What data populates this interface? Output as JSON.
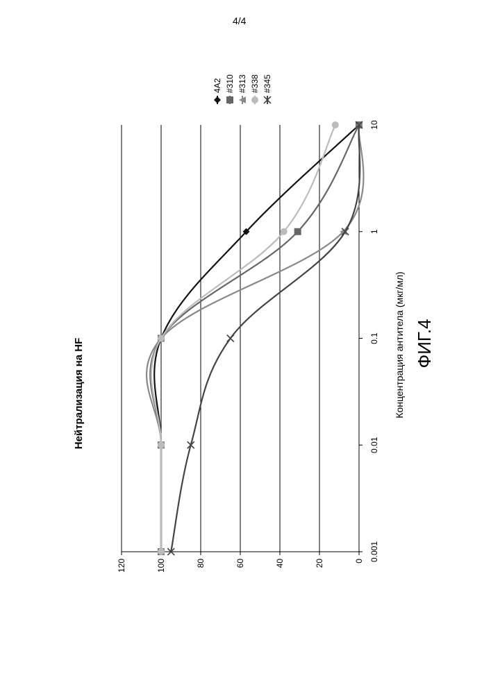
{
  "page_number": "4/4",
  "figure_caption": "ФИГ.4",
  "chart_data": {
    "type": "line",
    "title": "Нейтрализация на HF",
    "xlabel": "Концентрация антитела (мкг/мл)",
    "ylabel": "",
    "x_scale": "log",
    "xlim": [
      0.001,
      10
    ],
    "ylim": [
      0,
      120
    ],
    "x_ticks": [
      "0.001",
      "0.01",
      "0.1",
      "1",
      "10"
    ],
    "y_ticks": [
      "0",
      "20",
      "40",
      "60",
      "80",
      "100",
      "120"
    ],
    "grid": true,
    "legend_position": "top-right",
    "series": [
      {
        "name": "4A2",
        "color": "#111111",
        "marker": "diamond",
        "x": [
          0.001,
          0.01,
          0.1,
          1,
          10
        ],
        "y": [
          100,
          100,
          100,
          57,
          0
        ]
      },
      {
        "name": "#310",
        "color": "#666666",
        "marker": "square",
        "x": [
          0.001,
          0.01,
          0.1,
          1,
          10
        ],
        "y": [
          100,
          100,
          100,
          31,
          0
        ]
      },
      {
        "name": "#313",
        "color": "#888888",
        "marker": "triangle",
        "x": [
          0.001,
          0.01,
          0.1,
          1,
          10
        ],
        "y": [
          100,
          100,
          100,
          8,
          0
        ]
      },
      {
        "name": "#338",
        "color": "#bbbbbb",
        "marker": "circle",
        "x": [
          0.001,
          0.01,
          0.1,
          1,
          10
        ],
        "y": [
          100,
          100,
          100,
          38,
          12
        ]
      },
      {
        "name": "#345",
        "color": "#444444",
        "marker": "x",
        "x": [
          0.001,
          0.01,
          0.1,
          1,
          10
        ],
        "y": [
          95,
          85,
          65,
          7,
          0
        ]
      }
    ]
  }
}
